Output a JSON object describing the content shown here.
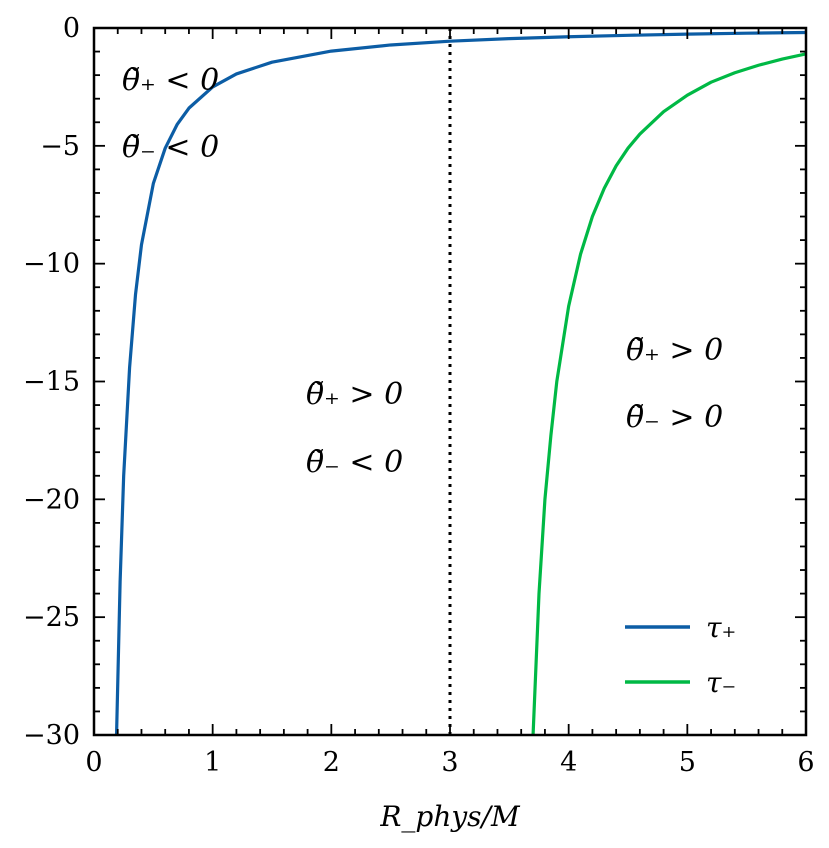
{
  "chart_data": {
    "type": "line",
    "xlabel": "R_phys/M",
    "ylabel": "",
    "title": "",
    "xlim": [
      0,
      6
    ],
    "ylim": [
      -30,
      0
    ],
    "xticks": [
      0,
      1,
      2,
      3,
      4,
      5,
      6
    ],
    "yticks": [
      -30,
      -25,
      -20,
      -15,
      -10,
      -5,
      0
    ],
    "grid": false,
    "legend_position": "lower-right",
    "vertical_line": {
      "x": 3,
      "style": "dotted",
      "color": "#000000"
    },
    "series": [
      {
        "name": "τ₊",
        "color": "#0C5DA5",
        "x": [
          0.19,
          0.22,
          0.25,
          0.3,
          0.35,
          0.4,
          0.5,
          0.6,
          0.7,
          0.8,
          1.0,
          1.2,
          1.5,
          2.0,
          2.5,
          3.0,
          3.5,
          4.0,
          4.5,
          5.0,
          5.5,
          6.0
        ],
        "y": [
          -30,
          -23.5,
          -19,
          -14.4,
          -11.3,
          -9.2,
          -6.6,
          -5.1,
          -4.1,
          -3.4,
          -2.5,
          -1.95,
          -1.45,
          -0.98,
          -0.72,
          -0.56,
          -0.45,
          -0.37,
          -0.31,
          -0.26,
          -0.22,
          -0.19
        ]
      },
      {
        "name": "τ₋",
        "color": "#00B945",
        "x": [
          3.7,
          3.75,
          3.8,
          3.85,
          3.9,
          4.0,
          4.1,
          4.2,
          4.3,
          4.4,
          4.5,
          4.6,
          4.8,
          5.0,
          5.2,
          5.4,
          5.6,
          5.8,
          6.0
        ],
        "y": [
          -30,
          -24,
          -20,
          -17.3,
          -15.0,
          -11.8,
          -9.6,
          -8.0,
          -6.8,
          -5.85,
          -5.1,
          -4.5,
          -3.55,
          -2.85,
          -2.3,
          -1.9,
          -1.58,
          -1.32,
          -1.1
        ]
      }
    ],
    "annotations": [
      {
        "line1": "θ̃₊ < 0",
        "line2": "θ̃₋ < 0"
      },
      {
        "line1": "θ̃₊ > 0",
        "line2": "θ̃₋ < 0"
      },
      {
        "line1": "θ̃₊ > 0",
        "line2": "θ̃₋ > 0"
      }
    ]
  }
}
